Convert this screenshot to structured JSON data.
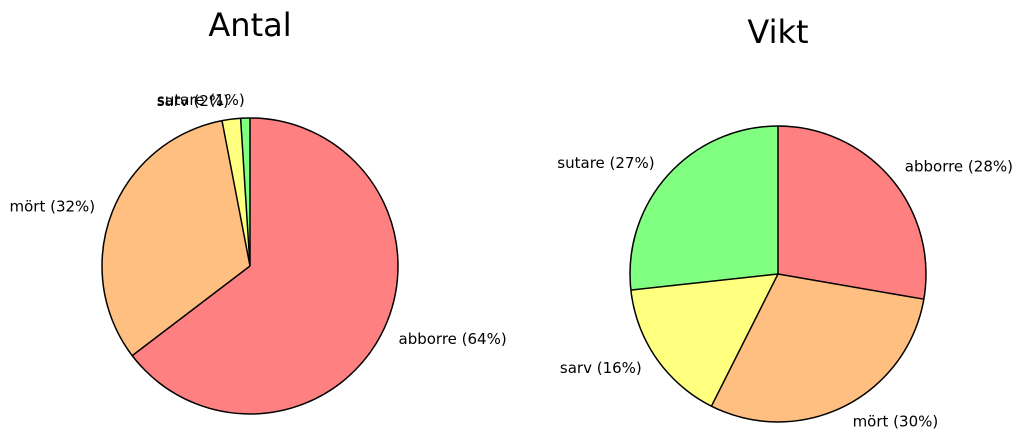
{
  "chart_data": [
    {
      "type": "pie",
      "title": "Antal",
      "values": [
        64,
        32,
        2,
        1
      ],
      "value_labels": [
        "abborre (64%)",
        "mört (32%)",
        "sarv (2%)",
        "sutare (1%)"
      ],
      "colors": [
        "#ff8080",
        "#ffbf80",
        "#ffff80",
        "#80ff80"
      ]
    },
    {
      "type": "pie",
      "title": "Vikt",
      "values": [
        28,
        30,
        16,
        27
      ],
      "value_labels": [
        "abborre (28%)",
        "mört (30%)",
        "sarv (16%)",
        "sutare (27%)"
      ],
      "colors": [
        "#ff8080",
        "#ffbf80",
        "#ffff80",
        "#80ff80"
      ]
    }
  ]
}
